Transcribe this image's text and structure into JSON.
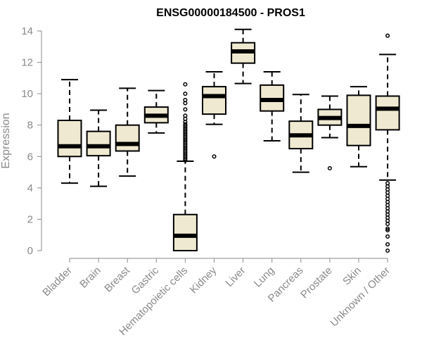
{
  "chart_data": {
    "type": "boxplot",
    "title": "ENSG00000184500 - PROS1",
    "xlabel": "",
    "ylabel": "Expression",
    "ylim": [
      0,
      14
    ],
    "yticks": [
      0,
      2,
      4,
      6,
      8,
      10,
      12,
      14
    ],
    "grid": false,
    "colors": {
      "box_fill": "#efe9d1",
      "stroke": "#000000",
      "axis": "#8a8a8a"
    },
    "categories": [
      "Bladder",
      "Brain",
      "Breast",
      "Gastric",
      "Hematopoietic cells",
      "Kidney",
      "Liver",
      "Lung",
      "Pancreas",
      "Prostate",
      "Skin",
      "Unknown / Other"
    ],
    "boxes": [
      {
        "whisker_low": 4.3,
        "q1": 6.0,
        "median": 6.65,
        "q3": 8.3,
        "whisker_high": 10.9,
        "outliers": []
      },
      {
        "whisker_low": 4.1,
        "q1": 6.05,
        "median": 6.65,
        "q3": 7.6,
        "whisker_high": 8.95,
        "outliers": []
      },
      {
        "whisker_low": 4.75,
        "q1": 6.35,
        "median": 6.8,
        "q3": 8.0,
        "whisker_high": 10.35,
        "outliers": []
      },
      {
        "whisker_low": 7.5,
        "q1": 8.15,
        "median": 8.6,
        "q3": 9.15,
        "whisker_high": 10.2,
        "outliers": []
      },
      {
        "whisker_low": 0.0,
        "q1": 0.0,
        "median": 0.95,
        "q3": 2.3,
        "whisker_high": 5.7,
        "outliers": [
          5.75,
          5.85,
          5.95,
          6.05,
          6.15,
          6.25,
          6.35,
          6.45,
          6.55,
          6.65,
          6.75,
          6.85,
          6.95,
          7.05,
          7.15,
          7.25,
          7.35,
          7.45,
          7.55,
          7.65,
          7.75,
          7.85,
          7.95,
          8.05,
          8.2,
          8.4,
          8.6,
          9.0,
          9.4,
          9.6,
          10.0,
          10.6
        ]
      },
      {
        "whisker_low": 8.05,
        "q1": 8.7,
        "median": 9.85,
        "q3": 10.45,
        "whisker_high": 11.4,
        "outliers": [
          6.0
        ]
      },
      {
        "whisker_low": 10.65,
        "q1": 11.95,
        "median": 12.7,
        "q3": 13.25,
        "whisker_high": 14.1,
        "outliers": []
      },
      {
        "whisker_low": 7.0,
        "q1": 8.9,
        "median": 9.6,
        "q3": 10.55,
        "whisker_high": 11.4,
        "outliers": []
      },
      {
        "whisker_low": 5.0,
        "q1": 6.5,
        "median": 7.35,
        "q3": 8.25,
        "whisker_high": 9.95,
        "outliers": []
      },
      {
        "whisker_low": 7.2,
        "q1": 8.0,
        "median": 8.45,
        "q3": 9.0,
        "whisker_high": 9.85,
        "outliers": [
          5.25
        ]
      },
      {
        "whisker_low": 5.35,
        "q1": 6.7,
        "median": 7.95,
        "q3": 9.9,
        "whisker_high": 10.45,
        "outliers": []
      },
      {
        "whisker_low": 4.5,
        "q1": 7.7,
        "median": 9.05,
        "q3": 9.85,
        "whisker_high": 12.5,
        "outliers": [
          13.7,
          4.3,
          4.1,
          3.9,
          3.7,
          3.5,
          3.3,
          3.1,
          2.9,
          2.7,
          2.5,
          2.3,
          2.1,
          1.9,
          1.7,
          1.4,
          1.3,
          0.9,
          0.4,
          0.0
        ]
      }
    ]
  }
}
